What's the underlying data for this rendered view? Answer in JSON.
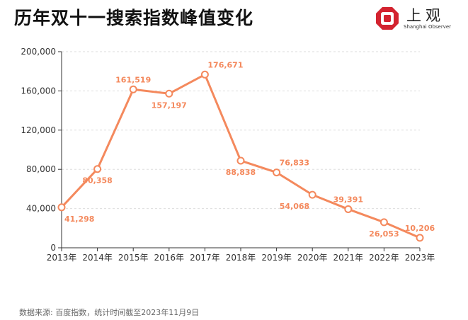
{
  "header": {
    "title": "历年双十一搜索指数峰值变化",
    "logo_name": "上观",
    "logo_sub": "Shanghai Observer"
  },
  "footer": {
    "source": "数据来源: 百度指数，统计时间截至2023年11月9日"
  },
  "colors": {
    "line": "#f4895d",
    "label": "#f4895d",
    "logo_red": "#d3232f",
    "axis": "#333333",
    "grid": "#dddddd"
  },
  "chart_data": {
    "type": "line",
    "title": "历年双十一搜索指数峰值变化",
    "xlabel": "",
    "ylabel": "",
    "categories": [
      "2013年",
      "2014年",
      "2015年",
      "2016年",
      "2017年",
      "2018年",
      "2019年",
      "2020年",
      "2021年",
      "2022年",
      "2023年"
    ],
    "series": [
      {
        "values": [
          41298,
          80358,
          161519,
          157197,
          176671,
          88838,
          76833,
          54068,
          39391,
          26053,
          10206
        ]
      }
    ],
    "data_labels": [
      "41,298",
      "80,358",
      "161,519",
      "157,197",
      "176,671",
      "88,838",
      "76,833",
      "54,068",
      "39,391",
      "26,053",
      "10,206"
    ],
    "yticks": [
      0,
      40000,
      80000,
      120000,
      160000,
      200000
    ],
    "ytick_labels": [
      "0",
      "40,000",
      "80,000",
      "120,000",
      "160,000",
      "200,000"
    ],
    "ylim": [
      0,
      200000
    ],
    "grid": true,
    "legend": "none"
  }
}
